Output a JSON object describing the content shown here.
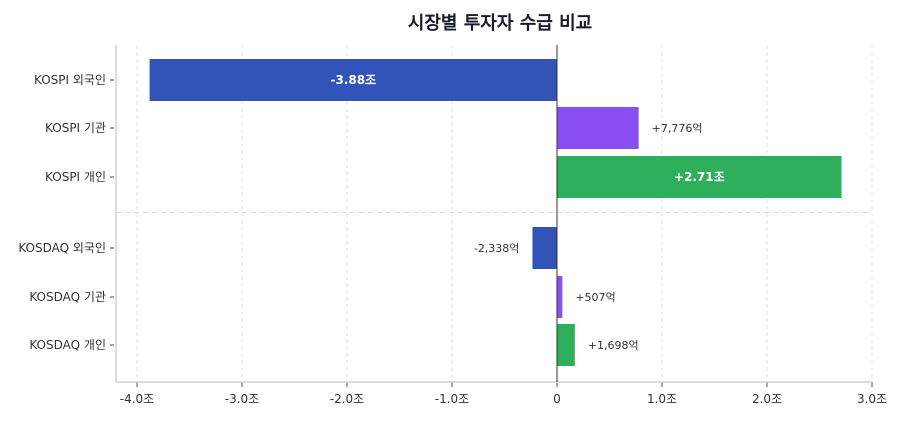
{
  "chart_data": {
    "type": "bar",
    "orientation": "horizontal",
    "title": "시장별 투자자 수급 비교",
    "xlabel": "",
    "ylabel": "",
    "unit": "조",
    "xlim": [
      -4.2,
      3.0
    ],
    "xticks": [
      -4.0,
      -3.0,
      -2.0,
      -1.0,
      0,
      1.0,
      2.0,
      3.0
    ],
    "xtick_labels": [
      "-4.0조",
      "-3.0조",
      "-2.0조",
      "-1.0조",
      "0",
      "1.0조",
      "2.0조",
      "3.0조"
    ],
    "grid": true,
    "categories": [
      "KOSPI 외국인",
      "KOSPI 기관",
      "KOSPI 개인",
      "KOSDAQ 외국인",
      "KOSDAQ 기관",
      "KOSDAQ 개인"
    ],
    "values": [
      -3.88,
      0.7776,
      2.71,
      -0.2338,
      0.0507,
      0.1698
    ],
    "data_labels": [
      "-3.88조",
      "+7,776억",
      "+2.71조",
      "-2,338억",
      "+507억",
      "+1,698억"
    ],
    "label_inside": [
      true,
      false,
      true,
      false,
      false,
      false
    ],
    "investor_colors": {
      "외국인": "#3253b8",
      "기관": "#8b4ef0",
      "개인": "#2eaf5c"
    },
    "bar_colors": [
      "#3253b8",
      "#8b4ef0",
      "#2eaf5c",
      "#3253b8",
      "#8b4ef0",
      "#2eaf5c"
    ],
    "group_separator_after_index": 2
  }
}
